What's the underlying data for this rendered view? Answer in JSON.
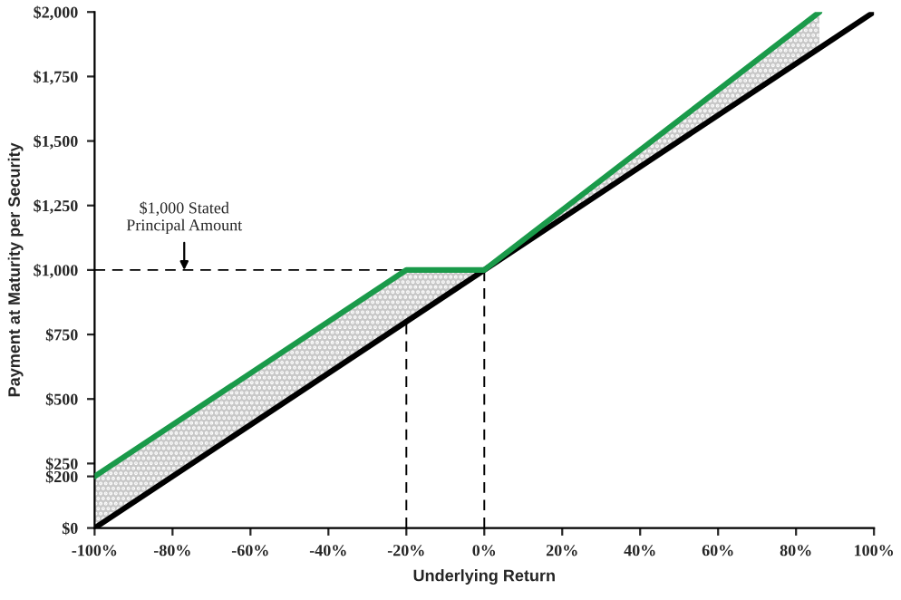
{
  "chart_data": {
    "type": "line",
    "xlabel": "Underlying Return",
    "ylabel": "Payment at Maturity per Security",
    "x": [
      -100,
      -20,
      0,
      86,
      100
    ],
    "series": [
      {
        "color": "#000000",
        "values": [
          0,
          800,
          1000,
          1860,
          2000
        ],
        "lower": [
          0,
          800,
          1000,
          1860,
          null
        ],
        "upper": [
          200,
          1000,
          1000,
          2000,
          null
        ]
      },
      {
        "color": "#1a9a4a",
        "values": [
          200,
          1000,
          1000,
          2000,
          null
        ]
      }
    ],
    "xlim": [
      -100,
      100
    ],
    "xticks": [
      {
        "value": -100,
        "label": "-100%"
      },
      {
        "value": -80,
        "label": "-80%"
      },
      {
        "value": -60,
        "label": "-60%"
      },
      {
        "value": -40,
        "label": "-40%"
      },
      {
        "value": -20,
        "label": "-20%"
      },
      {
        "value": 0,
        "label": "0%"
      },
      {
        "value": 20,
        "label": "20%"
      },
      {
        "value": 40,
        "label": "40%"
      },
      {
        "value": 60,
        "label": "60%"
      },
      {
        "value": 80,
        "label": "80%"
      },
      {
        "value": 100,
        "label": "100%"
      }
    ],
    "ylim": [
      0,
      2000
    ],
    "yticks": [
      {
        "value": 0,
        "label": "$0"
      },
      {
        "value": 200,
        "label": "$200"
      },
      {
        "value": 250,
        "label": "$250"
      },
      {
        "value": 500,
        "label": "$500"
      },
      {
        "value": 750,
        "label": "$750"
      },
      {
        "value": 1000,
        "label": "$1,000"
      },
      {
        "value": 1250,
        "label": "$1,250"
      },
      {
        "value": 1500,
        "label": "$1,500"
      },
      {
        "value": 1750,
        "label": "$1,750"
      },
      {
        "value": 2000,
        "label": "$2,000"
      }
    ],
    "ref_lines": [
      {
        "axis": "y",
        "value": 1000,
        "color": "#000000",
        "line_style": "dashed"
      },
      {
        "axis": "x",
        "value": -20,
        "color": "#000000",
        "line_style": "dashed"
      },
      {
        "axis": "x",
        "value": 0,
        "color": "#000000",
        "line_style": "dashed"
      }
    ],
    "annotations": [
      {
        "text": "$1,000 Stated\nPrincipal Amount",
        "x": -77,
        "y": 1000
      }
    ],
    "grid": false,
    "legend": false
  }
}
